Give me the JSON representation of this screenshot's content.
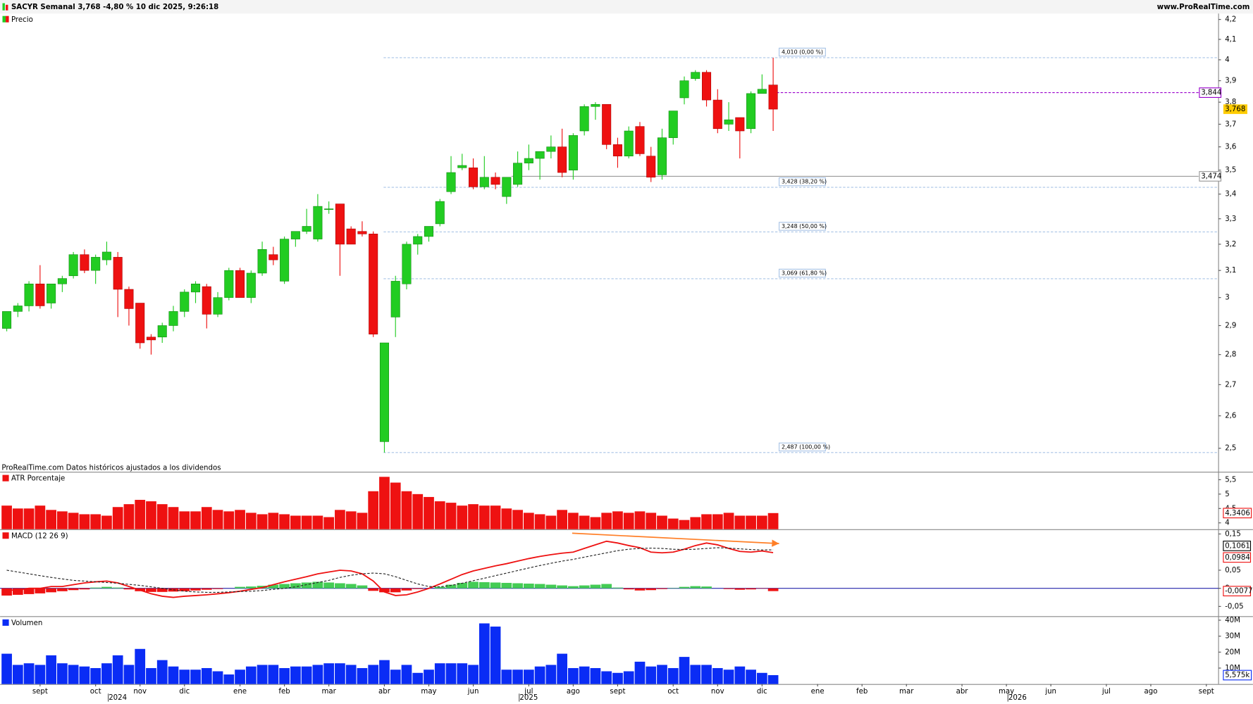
{
  "header": {
    "title": "SACYR Semanal 3,768 -4,80 % 10 dic 2025, 9:26:18",
    "site": "www.ProRealTime.com"
  },
  "chart_data": [
    {
      "type": "candlestick",
      "title": "Precio",
      "note": "ProRealTime.com Datos históricos ajustados a los dividendos",
      "log_scale": true,
      "xlim": [
        -0.6,
        109.1
      ],
      "ylim": [
        2.43,
        4.23
      ],
      "up_color": "#22cc22",
      "down_color": "#ee1111",
      "yticks": [
        {
          "value": 4.2,
          "label": "4,2"
        },
        {
          "value": 4.1,
          "label": "4,1"
        },
        4,
        {
          "value": 3.9,
          "label": "3,9"
        },
        {
          "value": 3.8,
          "label": "3,8"
        },
        {
          "value": 3.7,
          "label": "3,7"
        },
        {
          "value": 3.6,
          "label": "3,6"
        },
        {
          "value": 3.5,
          "label": "3,5"
        },
        {
          "value": 3.4,
          "label": "3,4"
        },
        {
          "value": 3.3,
          "label": "3,3"
        },
        {
          "value": 3.2,
          "label": "3,2"
        },
        {
          "value": 3.1,
          "label": "3,1"
        },
        3,
        {
          "value": 2.9,
          "label": "2,9"
        },
        {
          "value": 2.8,
          "label": "2,8"
        },
        {
          "value": 2.7,
          "label": "2,7"
        },
        {
          "value": 2.6,
          "label": "2,6"
        },
        {
          "value": 2.5,
          "label": "2,5"
        }
      ],
      "open": [
        2.89,
        2.95,
        2.97,
        3.05,
        2.98,
        3.05,
        3.08,
        3.16,
        3.1,
        3.14,
        3.15,
        3.03,
        2.98,
        2.86,
        2.86,
        2.9,
        2.95,
        3.02,
        3.04,
        2.94,
        3.0,
        3.1,
        3.0,
        3.09,
        3.16,
        3.06,
        3.22,
        3.25,
        3.22,
        3.34,
        3.36,
        3.26,
        3.25,
        3.24,
        2.52,
        2.93,
        3.05,
        3.2,
        3.23,
        3.28,
        3.41,
        3.51,
        3.51,
        3.43,
        3.47,
        3.39,
        3.44,
        3.53,
        3.55,
        3.58,
        3.6,
        3.5,
        3.67,
        3.78,
        3.79,
        3.61,
        3.56,
        3.69,
        3.56,
        3.48,
        3.64,
        3.82,
        3.91,
        3.94,
        3.81,
        3.7,
        3.73,
        3.68,
        3.84,
        3.88
      ],
      "high": [
        2.95,
        2.98,
        3.06,
        3.12,
        3.05,
        3.08,
        3.17,
        3.18,
        3.16,
        3.21,
        3.17,
        3.04,
        2.98,
        2.87,
        2.91,
        2.97,
        3.03,
        3.06,
        3.05,
        3.02,
        3.11,
        3.11,
        3.1,
        3.21,
        3.19,
        3.23,
        3.25,
        3.34,
        3.4,
        3.37,
        3.36,
        3.27,
        3.29,
        3.25,
        2.84,
        3.08,
        3.21,
        3.24,
        3.26,
        3.38,
        3.56,
        3.57,
        3.55,
        3.56,
        3.49,
        3.46,
        3.58,
        3.61,
        3.58,
        3.65,
        3.68,
        3.66,
        3.79,
        3.8,
        3.79,
        3.64,
        3.69,
        3.71,
        3.6,
        3.68,
        3.76,
        3.92,
        3.95,
        3.95,
        3.86,
        3.8,
        3.73,
        3.85,
        3.93,
        4.01
      ],
      "low": [
        2.88,
        2.93,
        2.95,
        2.96,
        2.96,
        3.02,
        3.07,
        3.09,
        3.05,
        3.12,
        2.93,
        2.9,
        2.82,
        2.8,
        2.84,
        2.88,
        2.93,
        2.98,
        2.89,
        2.93,
        2.99,
        3.0,
        2.98,
        3.08,
        3.12,
        3.05,
        3.19,
        3.24,
        3.21,
        3.32,
        3.08,
        3.2,
        3.23,
        2.86,
        2.487,
        2.86,
        3.03,
        3.16,
        3.21,
        3.27,
        3.4,
        3.5,
        3.42,
        3.42,
        3.42,
        3.36,
        3.43,
        3.5,
        3.46,
        3.55,
        3.47,
        3.46,
        3.65,
        3.72,
        3.59,
        3.51,
        3.55,
        3.56,
        3.45,
        3.46,
        3.61,
        3.79,
        3.9,
        3.78,
        3.66,
        3.67,
        3.55,
        3.66,
        3.84,
        3.67
      ],
      "close": [
        2.95,
        2.97,
        3.05,
        2.97,
        3.05,
        3.07,
        3.16,
        3.1,
        3.15,
        3.17,
        3.03,
        2.96,
        2.84,
        2.85,
        2.9,
        2.95,
        3.02,
        3.05,
        2.94,
        3.0,
        3.1,
        3.0,
        3.09,
        3.18,
        3.14,
        3.22,
        3.25,
        3.27,
        3.35,
        3.34,
        3.2,
        3.2,
        3.24,
        2.87,
        2.84,
        3.06,
        3.2,
        3.23,
        3.27,
        3.37,
        3.49,
        3.52,
        3.43,
        3.47,
        3.44,
        3.47,
        3.53,
        3.55,
        3.58,
        3.6,
        3.49,
        3.65,
        3.78,
        3.79,
        3.61,
        3.56,
        3.67,
        3.57,
        3.47,
        3.64,
        3.76,
        3.9,
        3.94,
        3.81,
        3.68,
        3.72,
        3.67,
        3.84,
        3.86,
        3.768
      ],
      "last_close_label": "3,768",
      "fibonacci": [
        {
          "value": 4.01,
          "label": "4,010 (0,00 %)"
        },
        {
          "value": 3.428,
          "label": "3,428 (38,20 %)"
        },
        {
          "value": 3.248,
          "label": "3,248 (50,00 %)"
        },
        {
          "value": 3.069,
          "label": "3,069 (61,80 %)"
        },
        {
          "value": 2.487,
          "label": "2,487 (100,00 %)"
        }
      ],
      "levels": [
        {
          "value": 3.844,
          "label": "3,844",
          "color": "#9900cc"
        },
        {
          "value": 3.474,
          "label": "3,474",
          "color": "#999999"
        }
      ]
    },
    {
      "type": "bar",
      "title": "ATR Porcentaje",
      "color": "#ee1111",
      "ylim": [
        3.78,
        5.75
      ],
      "yticks": [
        4,
        {
          "value": 4.5,
          "label": "4,5"
        },
        5,
        {
          "value": 5.5,
          "label": "5,5"
        }
      ],
      "values": [
        4.6,
        4.5,
        4.5,
        4.6,
        4.45,
        4.4,
        4.35,
        4.3,
        4.3,
        4.25,
        4.55,
        4.65,
        4.8,
        4.75,
        4.65,
        4.55,
        4.4,
        4.4,
        4.55,
        4.45,
        4.4,
        4.45,
        4.35,
        4.3,
        4.35,
        4.3,
        4.25,
        4.25,
        4.25,
        4.2,
        4.45,
        4.4,
        4.35,
        5.1,
        5.6,
        5.4,
        5.1,
        5.0,
        4.9,
        4.75,
        4.7,
        4.6,
        4.65,
        4.6,
        4.6,
        4.5,
        4.45,
        4.35,
        4.3,
        4.25,
        4.45,
        4.35,
        4.25,
        4.2,
        4.35,
        4.4,
        4.35,
        4.4,
        4.35,
        4.25,
        4.15,
        4.1,
        4.2,
        4.3,
        4.3,
        4.35,
        4.25,
        4.25,
        4.25,
        4.3406
      ],
      "last_value_label": "4,3406"
    },
    {
      "type": "macd",
      "title": "MACD (12 26 9)",
      "ylim": [
        -0.077,
        0.161
      ],
      "yticks": [
        {
          "value": 0.15,
          "label": "0,15"
        },
        {
          "value": 0.05,
          "label": "0,05"
        },
        0,
        {
          "value": -0.05,
          "label": "-0,05"
        }
      ],
      "series": [
        {
          "color": "#ee1111",
          "values": [
            -0.005,
            -0.005,
            0.0,
            0.0,
            0.005,
            0.005,
            0.01,
            0.015,
            0.018,
            0.02,
            0.015,
            0.005,
            -0.005,
            -0.015,
            -0.022,
            -0.025,
            -0.022,
            -0.02,
            -0.018,
            -0.015,
            -0.012,
            -0.008,
            -0.003,
            0.002,
            0.01,
            0.018,
            0.025,
            0.032,
            0.04,
            0.045,
            0.05,
            0.048,
            0.04,
            0.02,
            -0.01,
            -0.02,
            -0.018,
            -0.01,
            0.0,
            0.012,
            0.025,
            0.038,
            0.048,
            0.055,
            0.062,
            0.068,
            0.075,
            0.082,
            0.088,
            0.093,
            0.097,
            0.1,
            0.11,
            0.12,
            0.13,
            0.125,
            0.118,
            0.112,
            0.1,
            0.098,
            0.1,
            0.108,
            0.118,
            0.125,
            0.12,
            0.11,
            0.102,
            0.1,
            0.103,
            0.0984
          ],
          "last_label": "0,0984"
        },
        {
          "color": "#222222",
          "dashed": true,
          "values": [
            0.05,
            0.045,
            0.04,
            0.035,
            0.03,
            0.026,
            0.022,
            0.02,
            0.018,
            0.016,
            0.014,
            0.011,
            0.008,
            0.004,
            0.0,
            -0.004,
            -0.008,
            -0.01,
            -0.011,
            -0.011,
            -0.01,
            -0.009,
            -0.008,
            -0.006,
            -0.003,
            0.0,
            0.004,
            0.01,
            0.016,
            0.022,
            0.03,
            0.036,
            0.04,
            0.042,
            0.04,
            0.032,
            0.022,
            0.012,
            0.005,
            0.004,
            0.008,
            0.014,
            0.021,
            0.028,
            0.035,
            0.042,
            0.049,
            0.056,
            0.063,
            0.069,
            0.075,
            0.08,
            0.086,
            0.092,
            0.098,
            0.104,
            0.108,
            0.11,
            0.111,
            0.11,
            0.108,
            0.107,
            0.108,
            0.11,
            0.112,
            0.111,
            0.109,
            0.107,
            0.106,
            0.1061
          ],
          "last_label": "0,1061"
        }
      ],
      "histogram": {
        "up_color": "#44cc55",
        "down_color": "#ee1111",
        "values": [
          -0.02,
          -0.018,
          -0.016,
          -0.014,
          -0.011,
          -0.008,
          -0.005,
          -0.003,
          0.002,
          0.004,
          0.002,
          -0.003,
          -0.008,
          -0.01,
          -0.01,
          -0.009,
          -0.008,
          -0.006,
          -0.004,
          -0.002,
          0.0,
          0.004,
          0.005,
          0.007,
          0.01,
          0.012,
          0.014,
          0.016,
          0.018,
          0.016,
          0.014,
          0.012,
          0.008,
          -0.007,
          -0.011,
          -0.011,
          -0.006,
          -0.002,
          0.0,
          0.004,
          0.01,
          0.015,
          0.018,
          0.017,
          0.016,
          0.015,
          0.014,
          0.013,
          0.012,
          0.01,
          0.008,
          0.006,
          0.008,
          0.01,
          0.012,
          0.002,
          -0.003,
          -0.006,
          -0.005,
          -0.002,
          0.001,
          0.004,
          0.006,
          0.005,
          0.0,
          -0.002,
          -0.004,
          -0.003,
          -0.001,
          -0.0077
        ],
        "last_label": "-0,0077"
      }
    },
    {
      "type": "bar",
      "title": "Volumen",
      "color": "#0a2cf5",
      "ylim": [
        0,
        42
      ],
      "yticks": [
        {
          "value": 10,
          "label": "10M"
        },
        {
          "value": 20,
          "label": "20M"
        },
        {
          "value": 30,
          "label": "30M"
        },
        {
          "value": 40,
          "label": "40M"
        }
      ],
      "values": [
        19,
        12,
        13,
        12,
        18,
        13,
        12,
        11,
        10,
        13,
        18,
        12,
        22,
        10,
        15,
        11,
        9,
        9,
        10,
        8,
        6,
        9,
        11,
        12,
        12,
        10,
        11,
        11,
        12,
        13,
        13,
        12,
        10,
        12,
        15,
        9,
        12,
        7,
        9,
        13,
        13,
        13,
        12,
        38,
        36,
        9,
        9,
        9,
        11,
        12,
        19,
        10,
        11,
        10,
        8,
        7,
        8,
        14,
        11,
        12,
        10,
        17,
        12,
        12,
        10,
        9,
        11,
        9,
        7,
        5.575
      ],
      "last_value_label": "5,575k",
      "xticks": [
        {
          "value": 3,
          "label": "sept"
        },
        {
          "value": 8,
          "label": "oct"
        },
        {
          "value": 12,
          "label": "nov"
        },
        {
          "value": 16,
          "label": "dic"
        },
        {
          "value": 21,
          "label": "ene"
        },
        {
          "value": 25,
          "label": "feb"
        },
        {
          "value": 29,
          "label": "mar"
        },
        {
          "value": 34,
          "label": "abr"
        },
        {
          "value": 38,
          "label": "may"
        },
        {
          "value": 42,
          "label": "jun"
        },
        {
          "value": 47,
          "label": "jul"
        },
        {
          "value": 51,
          "label": "ago"
        },
        {
          "value": 55,
          "label": "sept"
        },
        {
          "value": 60,
          "label": "oct"
        },
        {
          "value": 64,
          "label": "nov"
        },
        {
          "value": 68,
          "label": "dic"
        },
        {
          "value": 73,
          "label": "ene"
        },
        {
          "value": 77,
          "label": "feb"
        },
        {
          "value": 81,
          "label": "mar"
        },
        {
          "value": 86,
          "label": "abr"
        },
        {
          "value": 90,
          "label": "may"
        },
        {
          "value": 94,
          "label": "jun"
        },
        {
          "value": 99,
          "label": "jul"
        },
        {
          "value": 103,
          "label": "ago"
        },
        {
          "value": 108,
          "label": "sept"
        }
      ],
      "year_ticks": [
        {
          "value": 10,
          "label": "2024"
        },
        {
          "value": 47,
          "label": "2025"
        },
        {
          "value": 91,
          "label": "2026"
        }
      ]
    }
  ]
}
